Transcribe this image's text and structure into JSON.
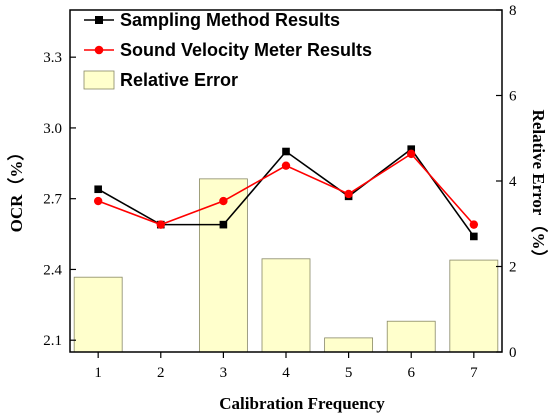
{
  "chart_data": {
    "type": "bar",
    "x": [
      1,
      2,
      3,
      4,
      5,
      6,
      7
    ],
    "xlabel": "Calibration Frequency",
    "ylabel": "OCR（%）",
    "y2label": "Relative Error（%）",
    "xlim": [
      0.55,
      7.45
    ],
    "ylim": [
      2.05,
      3.5
    ],
    "y2lim": [
      0,
      8
    ],
    "yticks": [
      "2.1",
      "2.4",
      "2.7",
      "3.0",
      "3.3"
    ],
    "y2ticks": [
      "0",
      "2",
      "4",
      "6",
      "8"
    ],
    "xticks": [
      "1",
      "2",
      "3",
      "4",
      "5",
      "6",
      "7"
    ],
    "grid": false,
    "legend_position": "top-left",
    "series": [
      {
        "name": "Sampling Method Results",
        "kind": "line",
        "axis": "left",
        "marker": "square",
        "color": "#000000",
        "values": [
          2.74,
          2.59,
          2.59,
          2.9,
          2.71,
          2.91,
          2.54
        ]
      },
      {
        "name": "Sound Velocity Meter Results",
        "kind": "line",
        "axis": "left",
        "marker": "circle",
        "color": "#ff0000",
        "values": [
          2.69,
          2.59,
          2.69,
          2.84,
          2.72,
          2.89,
          2.59
        ]
      },
      {
        "name": "Relative Error",
        "kind": "bar",
        "axis": "right",
        "color": "#ffffcc",
        "values": [
          1.75,
          0,
          4.05,
          2.18,
          0.33,
          0.72,
          2.15
        ]
      }
    ]
  }
}
